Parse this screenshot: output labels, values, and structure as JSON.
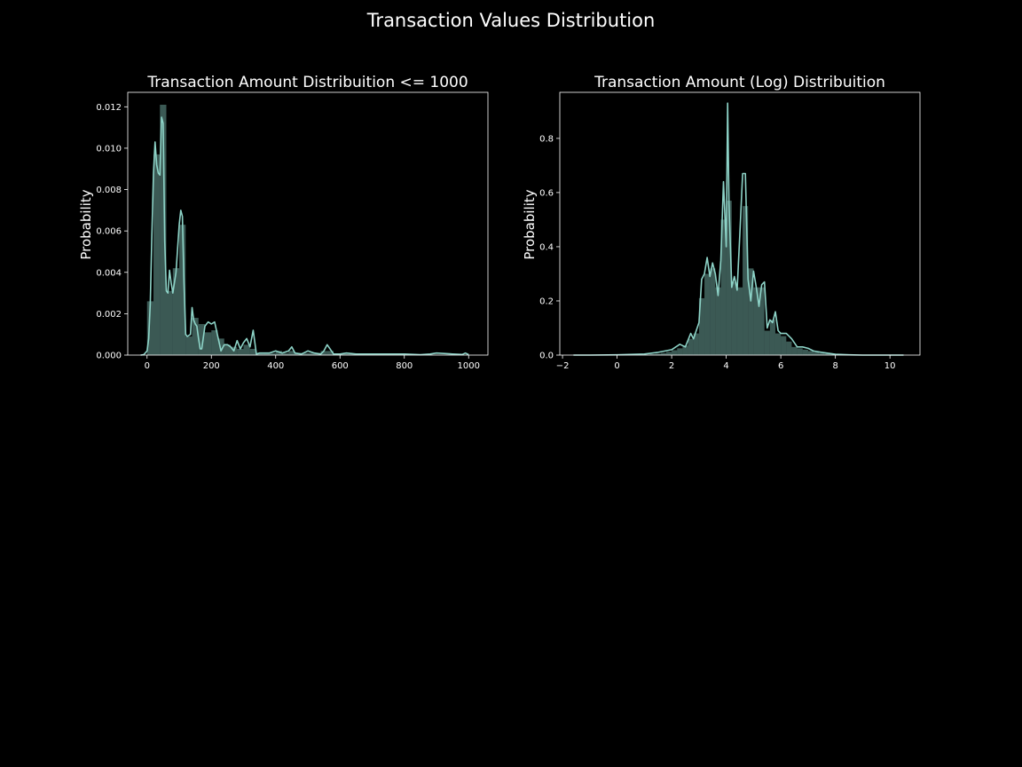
{
  "figure": {
    "suptitle": "Transaction Values Distribution"
  },
  "chart_data": [
    {
      "type": "area",
      "title": "Transaction Amount Distribuition <= 1000",
      "xlabel": "",
      "ylabel": "Probability",
      "xlim": [
        -60,
        1060
      ],
      "ylim": [
        0,
        0.0127
      ],
      "xticks": [
        0,
        200,
        400,
        600,
        800,
        1000
      ],
      "yticks": [
        0.0,
        0.002,
        0.004,
        0.006,
        0.008,
        0.01,
        0.012
      ],
      "ytick_decimals": 3,
      "xtick_decimals": 0,
      "grid": false,
      "colors": {
        "line": "#8dd3c7",
        "fill": "#8dd3c7",
        "axes": "#ffffff",
        "background": "#000000"
      },
      "histogram": {
        "bin_edges": [
          0,
          20,
          40,
          60,
          80,
          100,
          120,
          140,
          160,
          180,
          200,
          220,
          240,
          260,
          280,
          300,
          320,
          340,
          360,
          380,
          400,
          420,
          440,
          460,
          480,
          500,
          520,
          540,
          560,
          580,
          600,
          620,
          640,
          660,
          680,
          700,
          720,
          740,
          760,
          780,
          800,
          820,
          840,
          860,
          880,
          900,
          920,
          940,
          960,
          980,
          1000
        ],
        "values": [
          0.0026,
          0.0097,
          0.0121,
          0.0031,
          0.0042,
          0.0063,
          0.0009,
          0.0018,
          0.0015,
          0.0011,
          0.0012,
          0.0008,
          0.0005,
          0.0004,
          0.0003,
          0.0005,
          0.0003,
          0.0001,
          0.0001,
          0.0001,
          0.0002,
          0.0001,
          0.0002,
          0.0001,
          0.0001,
          0.0001,
          0.0001,
          0.0002,
          0.0002,
          5e-05,
          5e-05,
          5e-05,
          5e-05,
          5e-05,
          5e-05,
          3e-05,
          3e-05,
          3e-05,
          3e-05,
          3e-05,
          2e-05,
          2e-05,
          2e-05,
          2e-05,
          2e-05,
          2e-05,
          2e-05,
          2e-05,
          2e-05,
          2e-05
        ]
      },
      "kde": {
        "x": [
          -20,
          -10,
          0,
          5,
          10,
          15,
          20,
          25,
          30,
          35,
          40,
          45,
          50,
          55,
          60,
          65,
          70,
          75,
          80,
          90,
          100,
          105,
          110,
          115,
          120,
          125,
          135,
          140,
          145,
          150,
          155,
          160,
          165,
          170,
          180,
          190,
          200,
          210,
          220,
          230,
          240,
          250,
          260,
          270,
          280,
          290,
          300,
          310,
          320,
          330,
          340,
          350,
          360,
          380,
          400,
          420,
          440,
          450,
          460,
          480,
          500,
          520,
          540,
          550,
          560,
          580,
          600,
          620,
          650,
          700,
          750,
          800,
          850,
          880,
          900,
          950,
          980,
          990,
          1000
        ],
        "y": [
          0.0,
          2e-05,
          0.0002,
          0.0008,
          0.0025,
          0.0058,
          0.0088,
          0.0103,
          0.0092,
          0.0088,
          0.0087,
          0.0115,
          0.0112,
          0.0055,
          0.0031,
          0.003,
          0.0041,
          0.0035,
          0.003,
          0.004,
          0.0063,
          0.007,
          0.0067,
          0.0035,
          0.001,
          0.0009,
          0.001,
          0.0023,
          0.0017,
          0.0015,
          0.0014,
          0.0008,
          0.0003,
          0.0003,
          0.0014,
          0.0016,
          0.0015,
          0.0016,
          0.0009,
          0.0002,
          0.0005,
          0.0005,
          0.0004,
          0.0002,
          0.0007,
          0.0003,
          0.0006,
          0.0008,
          0.0004,
          0.0012,
          5e-05,
          0.0001,
          0.0001,
          0.0001,
          0.0002,
          0.0001,
          0.0002,
          0.0004,
          0.0001,
          5e-05,
          0.0002,
          0.0001,
          5e-05,
          0.0002,
          0.0005,
          5e-05,
          5e-05,
          0.0001,
          5e-05,
          5e-05,
          5e-05,
          5e-05,
          2e-05,
          5e-05,
          0.0001,
          5e-05,
          3e-05,
          0.0001,
          2e-05
        ]
      }
    },
    {
      "type": "area",
      "title": "Transaction Amount (Log) Distribuition",
      "xlabel": "",
      "ylabel": "Probability",
      "xlim": [
        -2.1,
        11.1
      ],
      "ylim": [
        0,
        0.97
      ],
      "xticks": [
        -2,
        0,
        2,
        4,
        6,
        8,
        10
      ],
      "xtick_labels": [
        "−2",
        "0",
        "2",
        "4",
        "6",
        "8",
        "10"
      ],
      "yticks": [
        0.0,
        0.2,
        0.4,
        0.6,
        0.8
      ],
      "ytick_decimals": 1,
      "xtick_decimals": 0,
      "grid": false,
      "colors": {
        "line": "#8dd3c7",
        "fill": "#8dd3c7",
        "axes": "#ffffff",
        "background": "#000000"
      },
      "histogram": {
        "bin_edges": [
          1.0,
          1.2,
          1.4,
          1.6,
          1.8,
          2.0,
          2.2,
          2.4,
          2.6,
          2.8,
          3.0,
          3.2,
          3.4,
          3.6,
          3.8,
          4.0,
          4.2,
          4.4,
          4.6,
          4.8,
          5.0,
          5.2,
          5.4,
          5.6,
          5.8,
          6.0,
          6.2,
          6.4,
          6.6,
          6.8,
          7.0,
          7.2,
          7.4,
          7.6,
          7.8,
          8.0
        ],
        "values": [
          0.002,
          0.003,
          0.005,
          0.008,
          0.012,
          0.018,
          0.025,
          0.035,
          0.06,
          0.08,
          0.21,
          0.3,
          0.32,
          0.25,
          0.5,
          0.57,
          0.27,
          0.25,
          0.55,
          0.32,
          0.25,
          0.25,
          0.09,
          0.13,
          0.08,
          0.07,
          0.05,
          0.03,
          0.025,
          0.02,
          0.015,
          0.01,
          0.007,
          0.005,
          0.003
        ]
      },
      "kde": {
        "x": [
          -1.6,
          -1.0,
          0.0,
          1.0,
          1.5,
          2.0,
          2.3,
          2.5,
          2.7,
          2.8,
          2.9,
          3.0,
          3.1,
          3.2,
          3.3,
          3.4,
          3.5,
          3.6,
          3.7,
          3.8,
          3.9,
          4.0,
          4.05,
          4.1,
          4.2,
          4.3,
          4.4,
          4.5,
          4.6,
          4.7,
          4.8,
          4.9,
          5.0,
          5.1,
          5.2,
          5.3,
          5.4,
          5.5,
          5.6,
          5.7,
          5.8,
          5.9,
          6.0,
          6.2,
          6.4,
          6.6,
          6.8,
          7.0,
          7.2,
          7.5,
          8.0,
          8.5,
          9.0,
          10.5
        ],
        "y": [
          0.0,
          0.0,
          0.001,
          0.004,
          0.01,
          0.02,
          0.04,
          0.03,
          0.08,
          0.06,
          0.09,
          0.12,
          0.28,
          0.3,
          0.36,
          0.29,
          0.34,
          0.3,
          0.22,
          0.35,
          0.64,
          0.4,
          0.93,
          0.56,
          0.25,
          0.29,
          0.24,
          0.45,
          0.67,
          0.67,
          0.28,
          0.2,
          0.31,
          0.25,
          0.18,
          0.26,
          0.27,
          0.1,
          0.13,
          0.12,
          0.16,
          0.09,
          0.08,
          0.08,
          0.06,
          0.03,
          0.03,
          0.025,
          0.015,
          0.01,
          0.003,
          0.001,
          0.0,
          0.0
        ]
      }
    }
  ]
}
